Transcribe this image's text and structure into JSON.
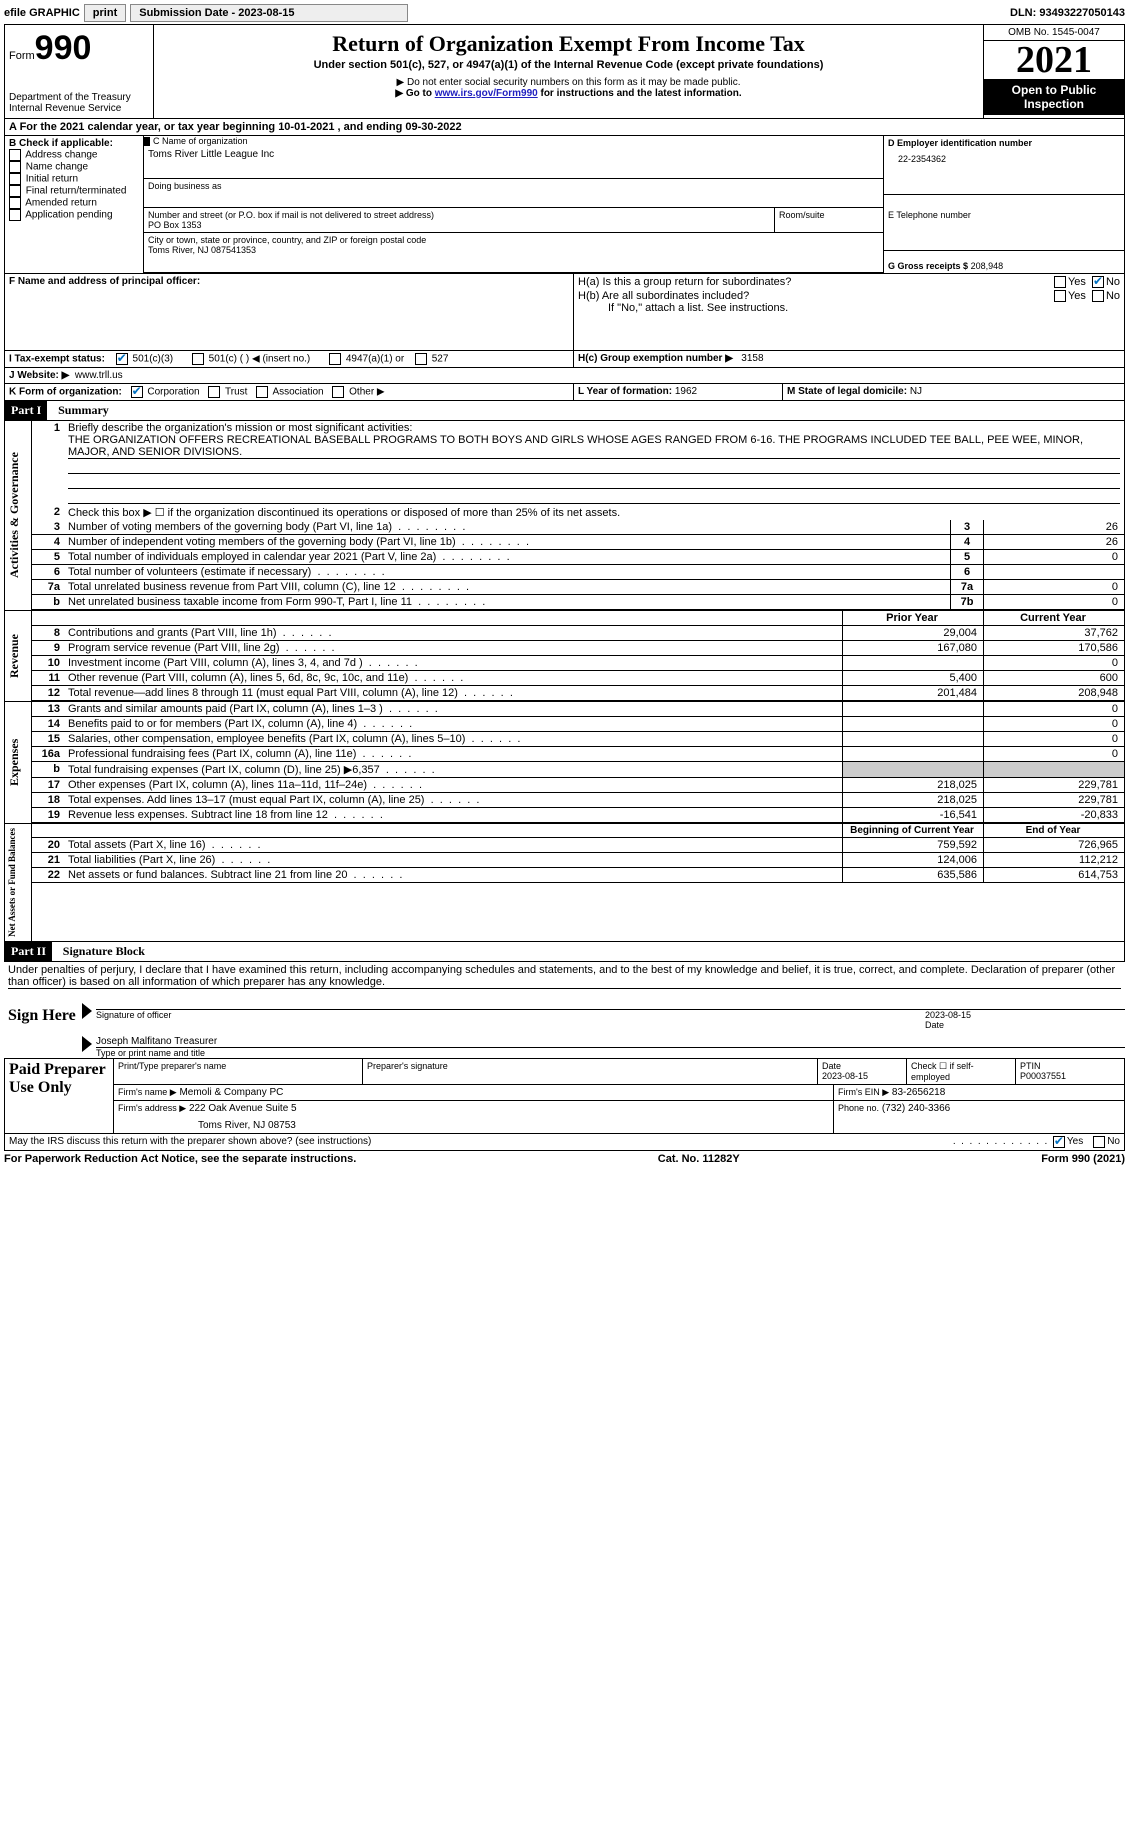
{
  "topbar": {
    "efile_label": "efile GRAPHIC",
    "print_btn": "print",
    "submission_label": "Submission Date - 2023-08-15",
    "dln": "DLN: 93493227050143"
  },
  "header": {
    "form_prefix": "Form",
    "form_number": "990",
    "dept": "Department of the Treasury",
    "irs": "Internal Revenue Service",
    "title": "Return of Organization Exempt From Income Tax",
    "subtitle": "Under section 501(c), 527, or 4947(a)(1) of the Internal Revenue Code (except private foundations)",
    "note1": "▶ Do not enter social security numbers on this form as it may be made public.",
    "note2_pre": "▶ Go to ",
    "note2_link": "www.irs.gov/Form990",
    "note2_post": " for instructions and the latest information.",
    "omb": "OMB No. 1545-0047",
    "year": "2021",
    "inspection": "Open to Public Inspection"
  },
  "sectionA": {
    "line": "A For the 2021 calendar year, or tax year beginning 10-01-2021    , and ending 09-30-2022",
    "b_label": "B Check if applicable:",
    "b_items": [
      "Address change",
      "Name change",
      "Initial return",
      "Final return/terminated",
      "Amended return",
      "Application pending"
    ],
    "c_label": "C Name of organization",
    "org_name": "Toms River Little League Inc",
    "dba_label": "Doing business as",
    "street_label": "Number and street (or P.O. box if mail is not delivered to street address)",
    "room_label": "Room/suite",
    "street": "PO Box 1353",
    "city_label": "City or town, state or province, country, and ZIP or foreign postal code",
    "city": "Toms River, NJ  087541353",
    "d_label": "D Employer identification number",
    "ein": "22-2354362",
    "e_label": "E Telephone number",
    "g_label": "G Gross receipts $",
    "g_value": "208,948",
    "f_label": "F  Name and address of principal officer:",
    "ha_label": "H(a)  Is this a group return for subordinates?",
    "hb_label": "H(b)  Are all subordinates included?",
    "hb_note": "If \"No,\" attach a list. See instructions.",
    "hc_label": "H(c)  Group exemption number ▶",
    "hc_value": "3158",
    "yes": "Yes",
    "no": "No",
    "i_label": "I   Tax-exempt status:",
    "i_501c3": "501(c)(3)",
    "i_501c": "501(c) (   ) ◀ (insert no.)",
    "i_4947": "4947(a)(1) or",
    "i_527": "527",
    "j_label": "J   Website: ▶",
    "website": "www.trll.us",
    "k_label": "K Form of organization:",
    "k_corp": "Corporation",
    "k_trust": "Trust",
    "k_assoc": "Association",
    "k_other": "Other ▶",
    "l_label": "L Year of formation:",
    "l_value": "1962",
    "m_label": "M State of legal domicile:",
    "m_value": "NJ"
  },
  "part1": {
    "header": "Part I",
    "title": "Summary",
    "line1_label": "Briefly describe the organization's mission or most significant activities:",
    "mission": "THE ORGANIZATION OFFERS RECREATIONAL BASEBALL PROGRAMS TO BOTH BOYS AND GIRLS WHOSE AGES RANGED FROM 6-16. THE PROGRAMS INCLUDED TEE BALL, PEE WEE, MINOR, MAJOR, AND SENIOR DIVISIONS.",
    "line2": "Check this box ▶ ☐ if the organization discontinued its operations or disposed of more than 25% of its net assets.",
    "rows_gov": [
      {
        "n": "3",
        "label": "Number of voting members of the governing body (Part VI, line 1a)",
        "box": "3",
        "val": "26"
      },
      {
        "n": "4",
        "label": "Number of independent voting members of the governing body (Part VI, line 1b)",
        "box": "4",
        "val": "26"
      },
      {
        "n": "5",
        "label": "Total number of individuals employed in calendar year 2021 (Part V, line 2a)",
        "box": "5",
        "val": "0"
      },
      {
        "n": "6",
        "label": "Total number of volunteers (estimate if necessary)",
        "box": "6",
        "val": ""
      },
      {
        "n": "7a",
        "label": "Total unrelated business revenue from Part VIII, column (C), line 12",
        "box": "7a",
        "val": "0"
      },
      {
        "n": "b",
        "label": "Net unrelated business taxable income from Form 990-T, Part I, line 11",
        "box": "7b",
        "val": "0"
      }
    ],
    "col_prior": "Prior Year",
    "col_current": "Current Year",
    "rows_rev": [
      {
        "n": "8",
        "label": "Contributions and grants (Part VIII, line 1h)",
        "prior": "29,004",
        "cur": "37,762"
      },
      {
        "n": "9",
        "label": "Program service revenue (Part VIII, line 2g)",
        "prior": "167,080",
        "cur": "170,586"
      },
      {
        "n": "10",
        "label": "Investment income (Part VIII, column (A), lines 3, 4, and 7d )",
        "prior": "",
        "cur": "0"
      },
      {
        "n": "11",
        "label": "Other revenue (Part VIII, column (A), lines 5, 6d, 8c, 9c, 10c, and 11e)",
        "prior": "5,400",
        "cur": "600"
      },
      {
        "n": "12",
        "label": "Total revenue—add lines 8 through 11 (must equal Part VIII, column (A), line 12)",
        "prior": "201,484",
        "cur": "208,948"
      }
    ],
    "rows_exp": [
      {
        "n": "13",
        "label": "Grants and similar amounts paid (Part IX, column (A), lines 1–3 )",
        "prior": "",
        "cur": "0"
      },
      {
        "n": "14",
        "label": "Benefits paid to or for members (Part IX, column (A), line 4)",
        "prior": "",
        "cur": "0"
      },
      {
        "n": "15",
        "label": "Salaries, other compensation, employee benefits (Part IX, column (A), lines 5–10)",
        "prior": "",
        "cur": "0"
      },
      {
        "n": "16a",
        "label": "Professional fundraising fees (Part IX, column (A), line 11e)",
        "prior": "",
        "cur": "0"
      },
      {
        "n": "b",
        "label": "Total fundraising expenses (Part IX, column (D), line 25) ▶6,357",
        "prior": "__SHADE__",
        "cur": "__SHADE__"
      },
      {
        "n": "17",
        "label": "Other expenses (Part IX, column (A), lines 11a–11d, 11f–24e)",
        "prior": "218,025",
        "cur": "229,781"
      },
      {
        "n": "18",
        "label": "Total expenses. Add lines 13–17 (must equal Part IX, column (A), line 25)",
        "prior": "218,025",
        "cur": "229,781"
      },
      {
        "n": "19",
        "label": "Revenue less expenses. Subtract line 18 from line 12",
        "prior": "-16,541",
        "cur": "-20,833"
      }
    ],
    "col_begin": "Beginning of Current Year",
    "col_end": "End of Year",
    "rows_net": [
      {
        "n": "20",
        "label": "Total assets (Part X, line 16)",
        "prior": "759,592",
        "cur": "726,965"
      },
      {
        "n": "21",
        "label": "Total liabilities (Part X, line 26)",
        "prior": "124,006",
        "cur": "112,212"
      },
      {
        "n": "22",
        "label": "Net assets or fund balances. Subtract line 21 from line 20",
        "prior": "635,586",
        "cur": "614,753"
      }
    ],
    "vlabels": {
      "gov": "Activities & Governance",
      "rev": "Revenue",
      "exp": "Expenses",
      "net": "Net Assets or Fund Balances"
    }
  },
  "part2": {
    "header": "Part II",
    "title": "Signature Block",
    "declaration": "Under penalties of perjury, I declare that I have examined this return, including accompanying schedules and statements, and to the best of my knowledge and belief, it is true, correct, and complete. Declaration of preparer (other than officer) is based on all information of which preparer has any knowledge.",
    "sign_here": "Sign Here",
    "sig_officer": "Signature of officer",
    "sig_date": "2023-08-15",
    "sig_name": "Joseph Malfitano  Treasurer",
    "sig_name_label": "Type or print name and title",
    "date_label": "Date",
    "paid_label": "Paid Preparer Use Only",
    "prep_name_label": "Print/Type preparer's name",
    "prep_sig_label": "Preparer's signature",
    "prep_date_label": "Date",
    "prep_date": "2023-08-15",
    "self_emp": "Check ☐ if self-employed",
    "ptin_label": "PTIN",
    "ptin": "P00037551",
    "firm_name_label": "Firm's name    ▶",
    "firm_name": "Memoli & Company PC",
    "firm_ein_label": "Firm's EIN ▶",
    "firm_ein": "83-2656218",
    "firm_addr_label": "Firm's address ▶",
    "firm_addr1": "222 Oak Avenue Suite 5",
    "firm_addr2": "Toms River, NJ  08753",
    "firm_phone_label": "Phone no.",
    "firm_phone": "(732) 240-3366",
    "discuss": "May the IRS discuss this return with the preparer shown above? (see instructions)",
    "yes": "Yes",
    "no": "No"
  },
  "footer": {
    "left": "For Paperwork Reduction Act Notice, see the separate instructions.",
    "mid": "Cat. No. 11282Y",
    "right": "Form 990 (2021)"
  }
}
